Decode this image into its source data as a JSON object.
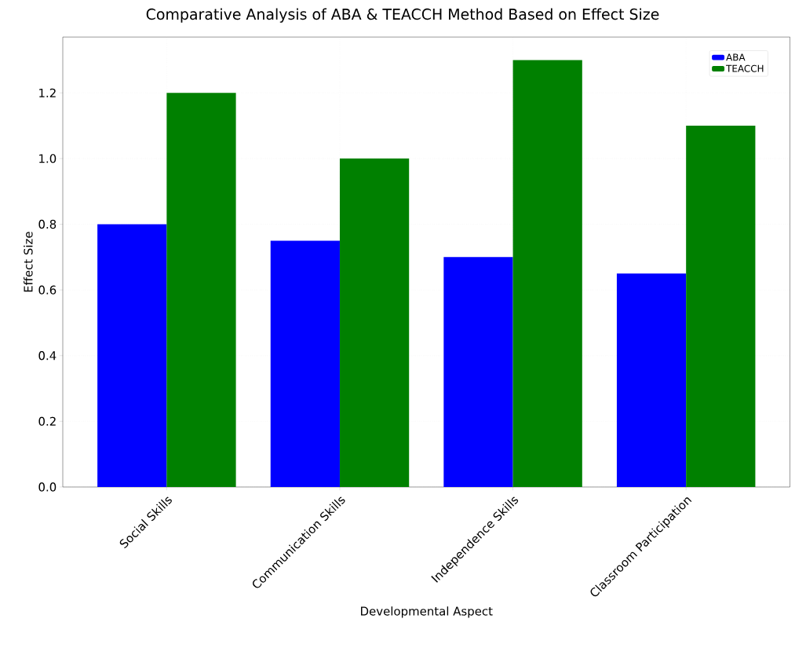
{
  "chart_data": {
    "type": "bar",
    "title": "Comparative Analysis of ABA & TEACCH Method Based on Effect Size",
    "xlabel": "Developmental Aspect",
    "ylabel": "Effect Size",
    "categories": [
      "Social Skills",
      "Communication Skills",
      "Independence Skills",
      "Classroom Participation"
    ],
    "series": [
      {
        "name": "ABA",
        "color": "#0000ff",
        "values": [
          0.8,
          0.75,
          0.7,
          0.65
        ]
      },
      {
        "name": "TEACCH",
        "color": "#008000",
        "values": [
          1.2,
          1.0,
          1.3,
          1.1
        ]
      }
    ],
    "ylim": [
      0,
      1.37
    ],
    "yticks": [
      {
        "value": 0,
        "label": "0.0"
      },
      0.2,
      0.4,
      0.6,
      0.8,
      {
        "value": 1,
        "label": "1.0"
      },
      1.2
    ],
    "grid": true,
    "legend": "top right"
  }
}
